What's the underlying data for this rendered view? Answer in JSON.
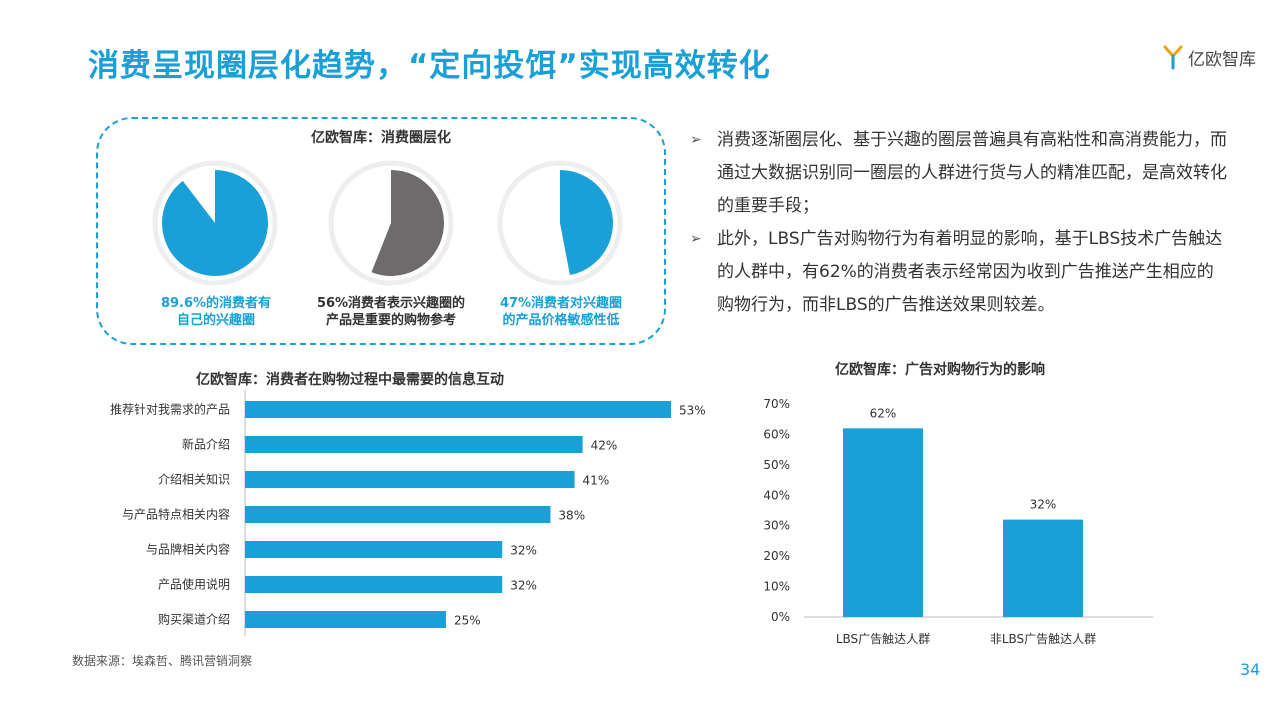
{
  "header": {
    "title": "消费呈现圈层化趋势，“定向投饵”实现高效转化",
    "logo_text": "亿欧智库"
  },
  "panel": {
    "title": "亿欧智库：消费圈层化",
    "pies": [
      {
        "value": 89.6,
        "label_line1": "89.6%的消费者有",
        "label_line2": "自己的兴趣圈",
        "color": "#1a9fd6",
        "label_color": "#1a9fd6"
      },
      {
        "value": 56,
        "label_line1": "56%消费者表示兴趣圈的",
        "label_line2": "产品是重要的购物参考",
        "color": "#6f6b6c",
        "label_color": "#333333"
      },
      {
        "value": 47,
        "label_line1": "47%消费者对兴趣圈",
        "label_line2": "的产品价格敏感性低",
        "color": "#1a9fd6",
        "label_color": "#1a9fd6"
      }
    ]
  },
  "bullets": [
    "消费逐渐圈层化、基于兴趣的圈层普遍具有高粘性和高消费能力，而通过大数据识别同一圈层的人群进行货与人的精准匹配，是高效转化的重要手段；",
    "此外，LBS广告对购物行为有着明显的影响，基于LBS技术广告触达的人群中，有62%的消费者表示经常因为收到广告推送产生相应的购物行为，而非LBS的广告推送效果则较差。"
  ],
  "chart_data": [
    {
      "type": "bar",
      "orientation": "horizontal",
      "title": "亿欧智库：消费者在购物过程中最需要的信息互动",
      "categories": [
        "推荐针对我需求的产品",
        "新品介绍",
        "介绍相关知识",
        "与产品特点相关内容",
        "与品牌相关内容",
        "产品使用说明",
        "购买渠道介绍"
      ],
      "values": [
        53,
        42,
        41,
        38,
        32,
        32,
        25
      ],
      "value_labels": [
        "53%",
        "42%",
        "41%",
        "38%",
        "32%",
        "32%",
        "25%"
      ],
      "xlim": [
        0,
        53
      ],
      "color": "#1a9fd6"
    },
    {
      "type": "bar",
      "title": "亿欧智库：广告对购物行为的影响",
      "categories": [
        "LBS广告触达人群",
        "非LBS广告触达人群"
      ],
      "values": [
        62,
        32
      ],
      "value_labels": [
        "62%",
        "32%"
      ],
      "ylim": [
        0,
        70
      ],
      "yticks": [
        "0%",
        "10%",
        "20%",
        "30%",
        "40%",
        "50%",
        "60%",
        "70%"
      ],
      "color": "#1a9fd6"
    }
  ],
  "footer": {
    "source": "数据来源：埃森哲、腾讯营销洞察",
    "page_number": "34"
  }
}
